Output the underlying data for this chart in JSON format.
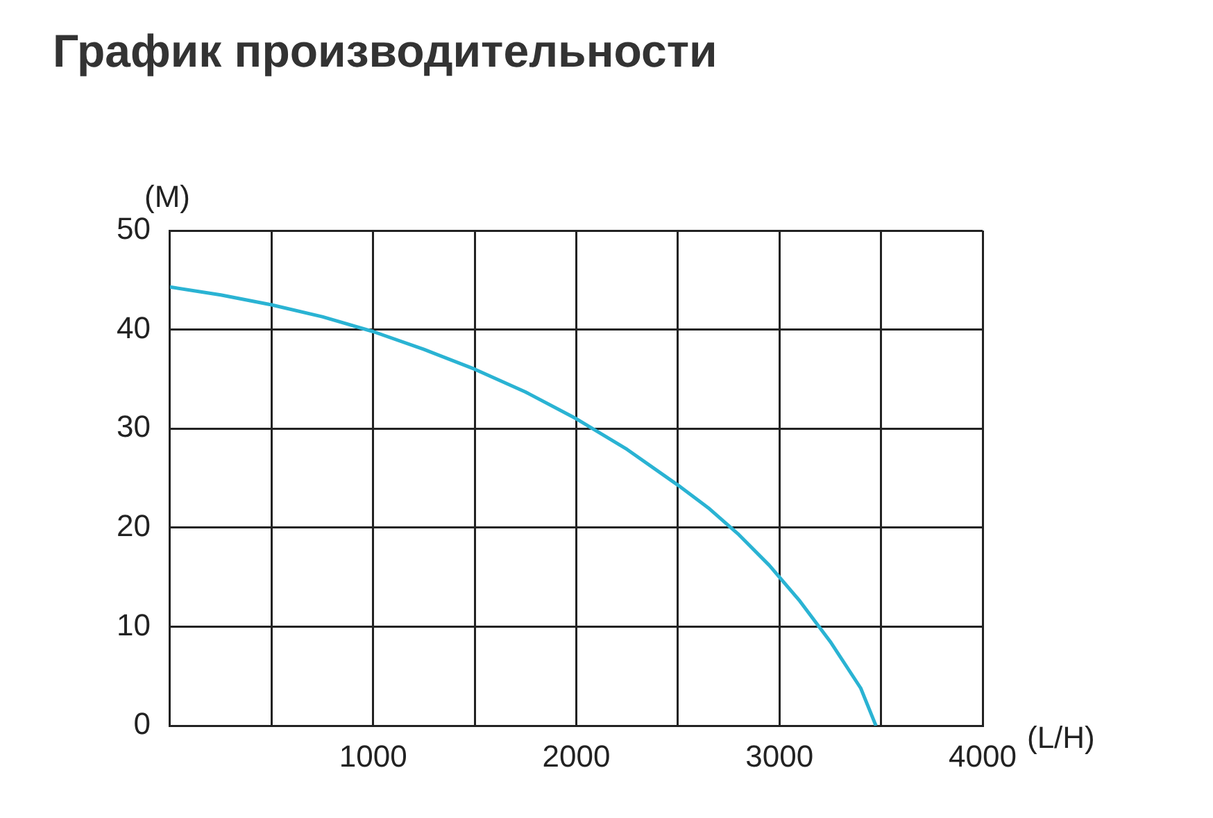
{
  "chart_data": {
    "type": "line",
    "title": "График производительности",
    "xlabel": "(L/H)",
    "ylabel": "(M)",
    "x": [
      0,
      250,
      500,
      750,
      1000,
      1250,
      1500,
      1750,
      2000,
      2250,
      2500,
      2650,
      2800,
      2950,
      3100,
      3250,
      3400,
      3475
    ],
    "series": [
      {
        "color": "#2ab3d3",
        "values": [
          44.3,
          43.5,
          42.5,
          41.3,
          39.8,
          38,
          36,
          33.7,
          31,
          27.9,
          24.3,
          22,
          19.3,
          16.2,
          12.6,
          8.5,
          3.8,
          0
        ]
      }
    ],
    "xlim": [
      0,
      4000
    ],
    "ylim": [
      0,
      50
    ],
    "xticks": [
      {
        "value": 0,
        "label": null
      },
      {
        "value": 500,
        "label": null
      },
      1000,
      {
        "value": 1500,
        "label": null
      },
      2000,
      {
        "value": 2500,
        "label": null
      },
      3000,
      {
        "value": 3500,
        "label": null
      },
      4000
    ],
    "yticks": [
      0,
      10,
      20,
      30,
      40,
      50
    ],
    "grid": true,
    "legend": false,
    "marker": "none",
    "line_style": "solid"
  }
}
